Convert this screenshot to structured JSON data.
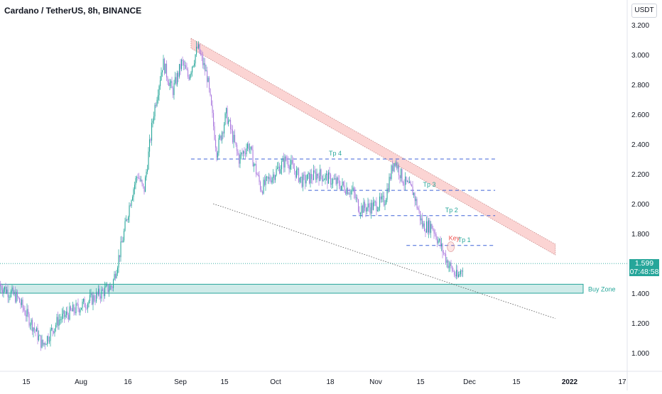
{
  "header": {
    "title": "Cardano / TetherUS, 8h, BINANCE",
    "currency_button": "USDT"
  },
  "price_tag": {
    "price": "1.599",
    "countdown": "07:48:58",
    "color": "#26a69a"
  },
  "colors": {
    "up": "#26a69a",
    "down": "#ab7ade",
    "level": "#3f63d8",
    "channel": "#ef5350",
    "zone": "#26a69a"
  },
  "chart_data": {
    "type": "candlestick",
    "symbol": "Cardano / TetherUS",
    "interval": "8h",
    "exchange": "BINANCE",
    "x_ticks": [
      "15",
      "Aug",
      "16",
      "Sep",
      "15",
      "Oct",
      "18",
      "Nov",
      "15",
      "Dec",
      "15",
      "2022",
      "17"
    ],
    "y_ticks": [
      "1.000",
      "1.200",
      "1.400",
      "1.600",
      "1.800",
      "2.000",
      "2.200",
      "2.400",
      "2.600",
      "2.800",
      "3.000",
      "3.200"
    ],
    "ylim": [
      0.9,
      3.25
    ],
    "last_price": 1.599,
    "path_points": [
      [
        "2021-07-06",
        1.46
      ],
      [
        "2021-07-12",
        1.37
      ],
      [
        "2021-07-17",
        1.18
      ],
      [
        "2021-07-20",
        1.05
      ],
      [
        "2021-07-25",
        1.22
      ],
      [
        "2021-07-31",
        1.3
      ],
      [
        "2021-08-06",
        1.38
      ],
      [
        "2021-08-11",
        1.45
      ],
      [
        "2021-08-14",
        1.73
      ],
      [
        "2021-08-17",
        2.05
      ],
      [
        "2021-08-19",
        2.2
      ],
      [
        "2021-08-21",
        2.08
      ],
      [
        "2021-08-24",
        2.6
      ],
      [
        "2021-08-27",
        2.95
      ],
      [
        "2021-08-30",
        2.75
      ],
      [
        "2021-09-02",
        2.95
      ],
      [
        "2021-09-04",
        2.85
      ],
      [
        "2021-09-07",
        3.05
      ],
      [
        "2021-09-10",
        2.85
      ],
      [
        "2021-09-13",
        2.35
      ],
      [
        "2021-09-16",
        2.6
      ],
      [
        "2021-09-20",
        2.3
      ],
      [
        "2021-09-23",
        2.4
      ],
      [
        "2021-09-27",
        2.1
      ],
      [
        "2021-10-01",
        2.2
      ],
      [
        "2021-10-05",
        2.3
      ],
      [
        "2021-10-10",
        2.15
      ],
      [
        "2021-10-15",
        2.2
      ],
      [
        "2021-10-20",
        2.15
      ],
      [
        "2021-10-26",
        2.08
      ],
      [
        "2021-10-28",
        1.97
      ],
      [
        "2021-11-01",
        1.98
      ],
      [
        "2021-11-05",
        2.02
      ],
      [
        "2021-11-08",
        2.3
      ],
      [
        "2021-11-11",
        2.15
      ],
      [
        "2021-11-14",
        2.08
      ],
      [
        "2021-11-17",
        1.85
      ],
      [
        "2021-11-20",
        1.85
      ],
      [
        "2021-11-23",
        1.7
      ],
      [
        "2021-11-25",
        1.6
      ],
      [
        "2021-11-28",
        1.5
      ],
      [
        "2021-11-30",
        1.6
      ]
    ],
    "annotations": [
      {
        "label": "Tp 4",
        "price": 2.3,
        "from": "2021-09-05",
        "to": "2021-12-10"
      },
      {
        "label": "Tp 3",
        "price": 2.09,
        "from": "2021-10-12",
        "to": "2021-12-10"
      },
      {
        "label": "Tp 2",
        "price": 1.92,
        "from": "2021-10-26",
        "to": "2021-12-10"
      },
      {
        "label": "Tp 1",
        "price": 1.72,
        "from": "2021-11-12",
        "to": "2021-12-10"
      },
      {
        "label": "Key",
        "price": 1.74,
        "at": "2021-11-26"
      },
      {
        "label": "Buy Zone",
        "low": 1.4,
        "high": 1.46
      }
    ],
    "trendlines": {
      "channel_upper": [
        [
          "2021-09-05",
          3.1
        ],
        [
          "2021-12-29",
          1.7
        ]
      ],
      "support": [
        [
          "2021-09-12",
          2.0
        ],
        [
          "2021-12-29",
          1.23
        ]
      ]
    },
    "grid": false
  }
}
